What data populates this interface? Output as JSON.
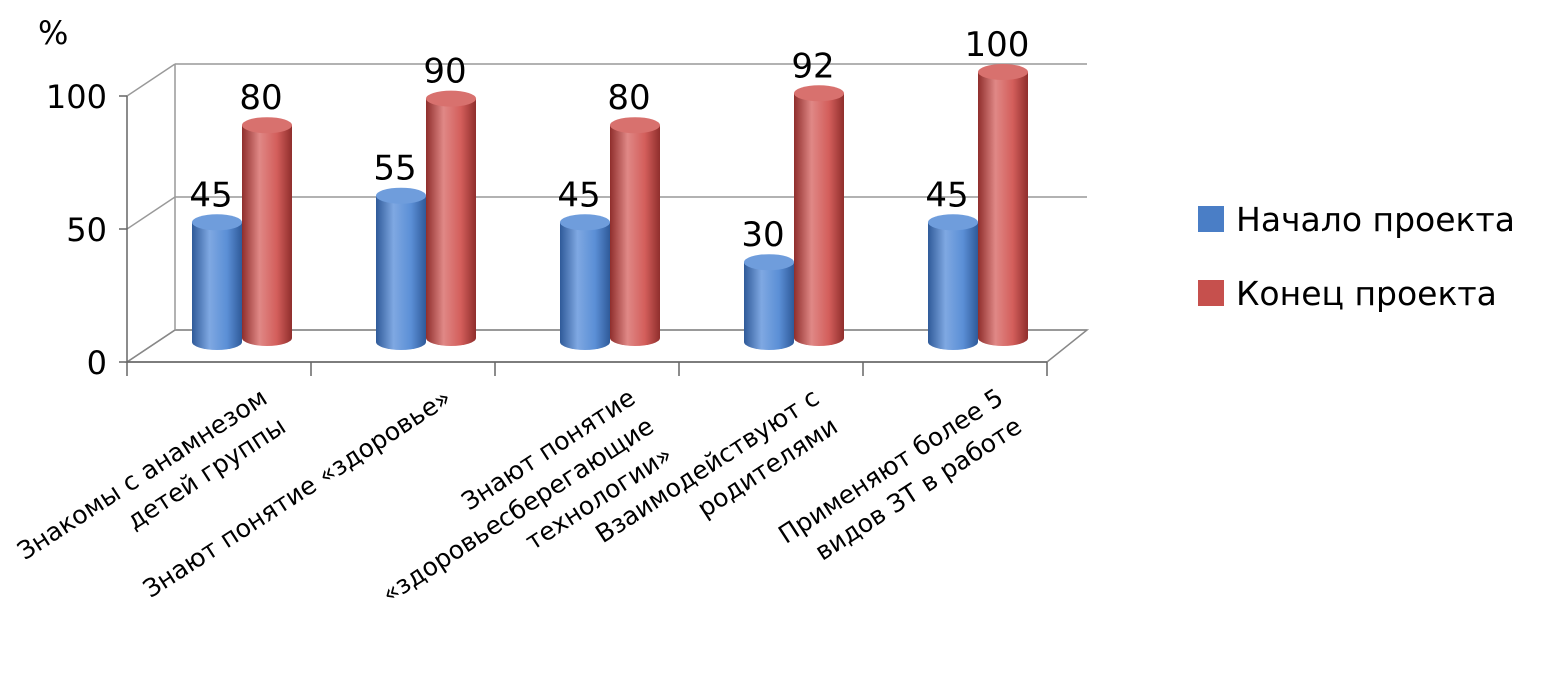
{
  "chart_data": {
    "type": "bar",
    "y_unit_label": "%",
    "categories": [
      [
        "Знакомы с анамнезом",
        "детей группы"
      ],
      [
        "Знают понятие «здоровье»"
      ],
      [
        "Знают понятие",
        "«здоровьесберегающие",
        "технологии»"
      ],
      [
        "Взаимодействуют с",
        "родителями"
      ],
      [
        "Применяют более 5",
        "видов ЗТ в работе"
      ]
    ],
    "series": [
      {
        "name": "Начало проекта",
        "values": [
          45,
          55,
          45,
          30,
          45
        ],
        "color": "#4a7ec6"
      },
      {
        "name": "Конец проекта",
        "values": [
          80,
          90,
          80,
          92,
          100
        ],
        "color": "#c6504d"
      }
    ],
    "ylim": [
      0,
      100
    ],
    "yticks": [
      "0",
      "50",
      "100"
    ],
    "grid": true,
    "legend_position": "right",
    "style": "3d-cylinder"
  }
}
